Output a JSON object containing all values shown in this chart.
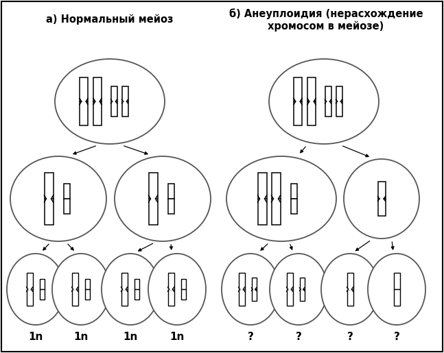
{
  "title_left": "а) Нормальный мейоз",
  "title_right": "б) Анеуплоидия (нерасхождение\nхромосом в мейозе)",
  "labels_left": [
    "1n",
    "1n",
    "1n",
    "1n"
  ],
  "labels_right": [
    "?",
    "?",
    "?",
    "?"
  ],
  "bg_color": "#ffffff",
  "cell_color": "#555555",
  "chrom_color": "#000000",
  "title_fontsize": 10.5,
  "label_fontsize": 11,
  "figsize": [
    6.47,
    5.15
  ],
  "dpi": 100
}
